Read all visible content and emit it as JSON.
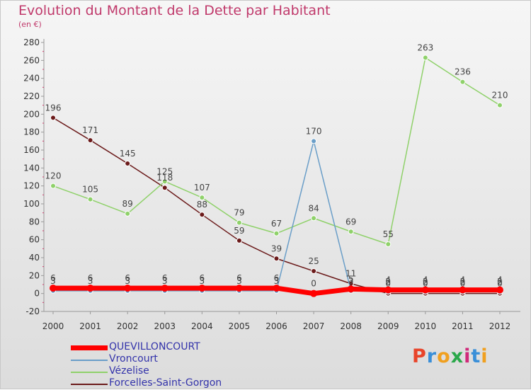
{
  "header": {
    "title": "Evolution du Montant de la Dette par Habitant",
    "subtitle": "(en €)"
  },
  "logo": {
    "text": "Proxiti",
    "colors": [
      "#e8442a",
      "#3a8fd8",
      "#f0a020",
      "#2aa84a",
      "#d02a7a",
      "#3a8fd8",
      "#f0a020"
    ]
  },
  "chart_data": {
    "type": "line",
    "x": [
      "2000",
      "2001",
      "2002",
      "2003",
      "2004",
      "2005",
      "2006",
      "2007",
      "2008",
      "2009",
      "2010",
      "2011",
      "2012"
    ],
    "ylim": [
      -20,
      280
    ],
    "yticks": [
      -20,
      0,
      20,
      40,
      60,
      80,
      100,
      120,
      140,
      160,
      180,
      200,
      220,
      240,
      260,
      280
    ],
    "grid": false,
    "legend": "bottom-left",
    "series": [
      {
        "name": "Forcelles-Saint-Gorgon",
        "color": "#6b1a1a",
        "values": [
          196,
          171,
          145,
          118,
          88,
          59,
          39,
          25,
          11,
          0,
          0,
          0,
          0
        ],
        "labels": [
          "196",
          "171",
          "145",
          "118",
          "88",
          "59",
          "39",
          "25",
          "11",
          "0",
          "0",
          "0",
          "0"
        ]
      },
      {
        "name": "Vézelise",
        "color": "#8fd16a",
        "values": [
          120,
          105,
          89,
          125,
          107,
          79,
          67,
          84,
          69,
          55,
          263,
          236,
          210
        ],
        "labels": [
          "120",
          "105",
          "89",
          "125",
          "107",
          "79",
          "67",
          "84",
          "69",
          "55",
          "263",
          "236",
          "210"
        ]
      },
      {
        "name": "Vroncourt",
        "color": "#6a9ec8",
        "values": [
          3,
          3,
          3,
          3,
          3,
          3,
          3,
          170,
          3,
          2,
          2,
          2,
          2
        ],
        "labels": [
          "3",
          "3",
          "3",
          "3",
          "3",
          "3",
          "3",
          "170",
          "3",
          "2",
          "2",
          "2",
          "2"
        ]
      },
      {
        "name": "QUEVILLONCOURT",
        "color": "#ff0000",
        "values": [
          6,
          6,
          6,
          6,
          6,
          6,
          6,
          0,
          5,
          4,
          4,
          4,
          4
        ],
        "labels": [
          "6",
          "6",
          "6",
          "6",
          "6",
          "6",
          "6",
          "0",
          "5",
          "4",
          "4",
          "4",
          "4"
        ]
      }
    ],
    "legend_order": [
      "QUEVILLONCOURT",
      "Vroncourt",
      "Vézelise",
      "Forcelles-Saint-Gorgon"
    ]
  }
}
